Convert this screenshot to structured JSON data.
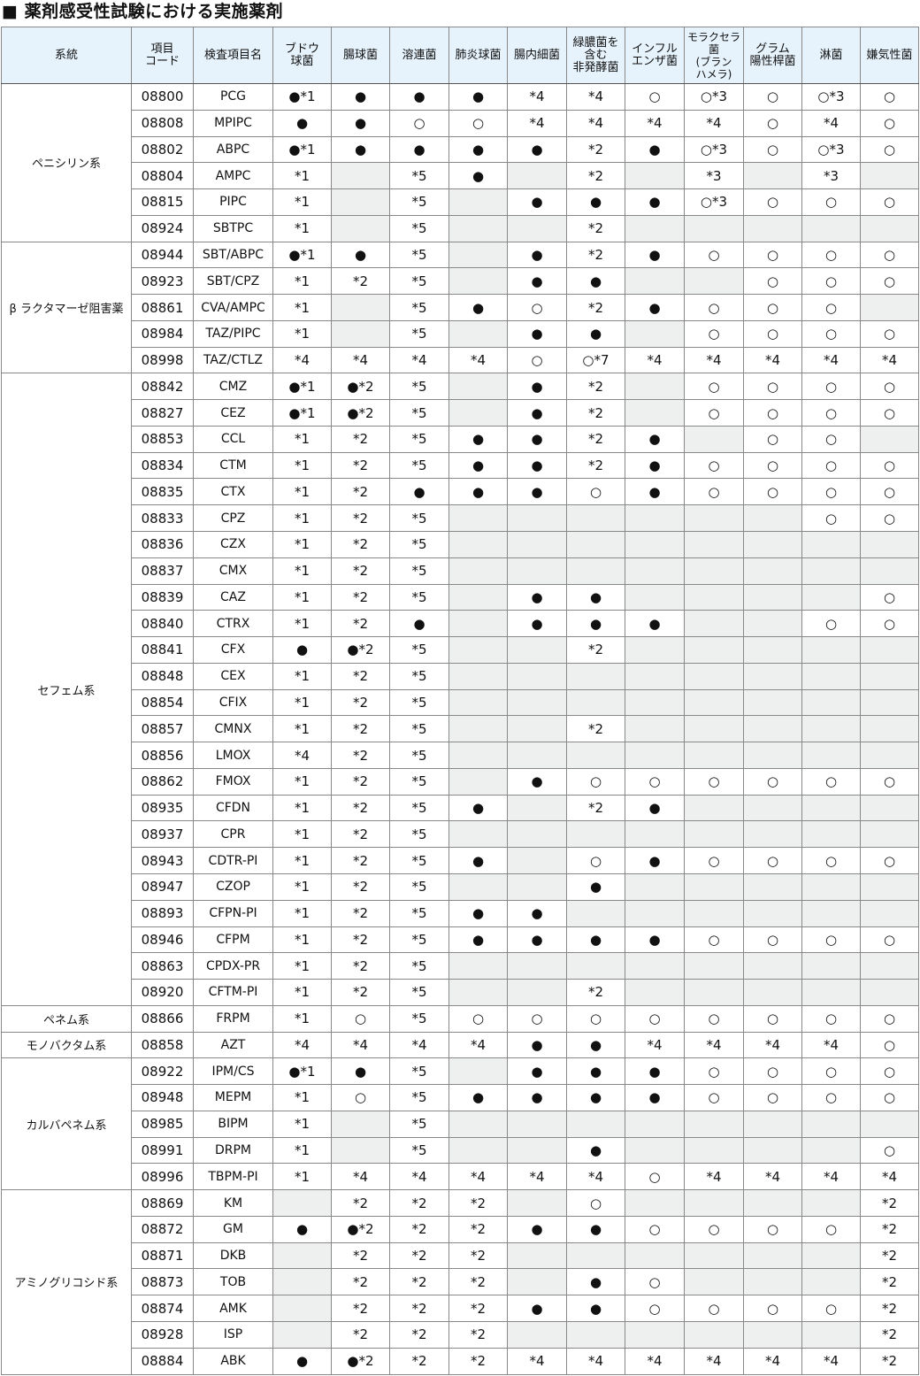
{
  "title": "■ 薬剤感受性試験における実施薬剤",
  "headers": [
    "系統",
    "項目\nコード",
    "検査項目名",
    "ブドウ\n球菌",
    "腸球菌",
    "溶連菌",
    "肺炎球菌",
    "腸内細菌",
    "緑膿菌を\n含む\n非発酵菌",
    "インフル\nエンザ菌",
    "モラクセラ菌\n(ブラン\nハメラ)",
    "グラム\n陽性桿菌",
    "淋菌",
    "嫌気性菌"
  ],
  "groups": [
    {
      "name": "ペニシリン系",
      "rows": [
        [
          "08800",
          "PCG",
          "●*1",
          "●",
          "●",
          "●",
          "*4",
          "*4",
          "○",
          "○*3",
          "○",
          "○*3",
          "○"
        ],
        [
          "08808",
          "MPIPC",
          "●",
          "●",
          "○",
          "○",
          "*4",
          "*4",
          "*4",
          "*4",
          "○",
          "*4",
          "○"
        ],
        [
          "08802",
          "ABPC",
          "●*1",
          "●",
          "●",
          "●",
          "●",
          "*2",
          "●",
          "○*3",
          "○",
          "○*3",
          "○"
        ],
        [
          "08804",
          "AMPC",
          "*1",
          "",
          "*5",
          "●",
          "",
          "*2",
          "",
          "*3",
          "",
          "*3",
          ""
        ],
        [
          "08815",
          "PIPC",
          "*1",
          "",
          "*5",
          "",
          "●",
          "●",
          "●",
          "○*3",
          "○",
          "○",
          "○"
        ],
        [
          "08924",
          "SBTPC",
          "*1",
          "",
          "*5",
          "",
          "",
          "*2",
          "",
          "",
          "",
          "",
          ""
        ]
      ]
    },
    {
      "name": "β ラクタマーゼ阻害薬",
      "rows": [
        [
          "08944",
          "SBT/ABPC",
          "●*1",
          "●",
          "*5",
          "",
          "●",
          "*2",
          "●",
          "○",
          "○",
          "○",
          "○"
        ],
        [
          "08923",
          "SBT/CPZ",
          "*1",
          "*2",
          "*5",
          "",
          "●",
          "●",
          "",
          "",
          "○",
          "○",
          "○"
        ],
        [
          "08861",
          "CVA/AMPC",
          "*1",
          "",
          "*5",
          "●",
          "○",
          "*2",
          "●",
          "○",
          "○",
          "○",
          ""
        ],
        [
          "08984",
          "TAZ/PIPC",
          "*1",
          "",
          "*5",
          "",
          "●",
          "●",
          "",
          "○",
          "○",
          "○",
          "○"
        ],
        [
          "08998",
          "TAZ/CTLZ",
          "*4",
          "*4",
          "*4",
          "*4",
          "○",
          "○*7",
          "*4",
          "*4",
          "*4",
          "*4",
          "*4"
        ]
      ]
    },
    {
      "name": "セフェム系",
      "rows": [
        [
          "08842",
          "CMZ",
          "●*1",
          "●*2",
          "*5",
          "",
          "●",
          "*2",
          "",
          "○",
          "○",
          "○",
          "○"
        ],
        [
          "08827",
          "CEZ",
          "●*1",
          "●*2",
          "*5",
          "",
          "●",
          "*2",
          "",
          "○",
          "○",
          "○",
          "○"
        ],
        [
          "08853",
          "CCL",
          "*1",
          "*2",
          "*5",
          "●",
          "●",
          "*2",
          "●",
          "",
          "○",
          "○",
          ""
        ],
        [
          "08834",
          "CTM",
          "*1",
          "*2",
          "*5",
          "●",
          "●",
          "*2",
          "●",
          "○",
          "○",
          "○",
          "○"
        ],
        [
          "08835",
          "CTX",
          "*1",
          "*2",
          "●",
          "●",
          "●",
          "○",
          "●",
          "○",
          "○",
          "○",
          "○"
        ],
        [
          "08833",
          "CPZ",
          "*1",
          "*2",
          "*5",
          "",
          "",
          "",
          "",
          "",
          "",
          "○",
          "○"
        ],
        [
          "08836",
          "CZX",
          "*1",
          "*2",
          "*5",
          "",
          "",
          "",
          "",
          "",
          "",
          "",
          ""
        ],
        [
          "08837",
          "CMX",
          "*1",
          "*2",
          "*5",
          "",
          "",
          "",
          "",
          "",
          "",
          "",
          ""
        ],
        [
          "08839",
          "CAZ",
          "*1",
          "*2",
          "*5",
          "",
          "●",
          "●",
          "",
          "",
          "",
          "",
          "○"
        ],
        [
          "08840",
          "CTRX",
          "*1",
          "*2",
          "●",
          "",
          "●",
          "●",
          "●",
          "",
          "",
          "○",
          "○"
        ],
        [
          "08841",
          "CFX",
          "●",
          "●*2",
          "*5",
          "",
          "",
          "*2",
          "",
          "",
          "",
          "",
          ""
        ],
        [
          "08848",
          "CEX",
          "*1",
          "*2",
          "*5",
          "",
          "",
          "",
          "",
          "",
          "",
          "",
          ""
        ],
        [
          "08854",
          "CFIX",
          "*1",
          "*2",
          "*5",
          "",
          "",
          "",
          "",
          "",
          "",
          "",
          ""
        ],
        [
          "08857",
          "CMNX",
          "*1",
          "*2",
          "*5",
          "",
          "",
          "*2",
          "",
          "",
          "",
          "",
          ""
        ],
        [
          "08856",
          "LMOX",
          "*4",
          "*2",
          "*5",
          "",
          "",
          "",
          "",
          "",
          "",
          "",
          ""
        ],
        [
          "08862",
          "FMOX",
          "*1",
          "*2",
          "*5",
          "",
          "●",
          "○",
          "○",
          "○",
          "○",
          "○",
          "○"
        ],
        [
          "08935",
          "CFDN",
          "*1",
          "*2",
          "*5",
          "●",
          "",
          "*2",
          "●",
          "",
          "",
          "",
          ""
        ],
        [
          "08937",
          "CPR",
          "*1",
          "*2",
          "*5",
          "",
          "",
          "",
          "",
          "",
          "",
          "",
          ""
        ],
        [
          "08943",
          "CDTR-PI",
          "*1",
          "*2",
          "*5",
          "●",
          "",
          "○",
          "●",
          "○",
          "○",
          "○",
          "○"
        ],
        [
          "08947",
          "CZOP",
          "*1",
          "*2",
          "*5",
          "",
          "",
          "●",
          "",
          "",
          "",
          "",
          ""
        ],
        [
          "08893",
          "CFPN-PI",
          "*1",
          "*2",
          "*5",
          "●",
          "●",
          "",
          "",
          "",
          "",
          "",
          ""
        ],
        [
          "08946",
          "CFPM",
          "*1",
          "*2",
          "*5",
          "●",
          "●",
          "●",
          "●",
          "○",
          "○",
          "○",
          "○"
        ],
        [
          "08863",
          "CPDX-PR",
          "*1",
          "*2",
          "*5",
          "",
          "",
          "",
          "",
          "",
          "",
          "",
          ""
        ],
        [
          "08920",
          "CFTM-PI",
          "*1",
          "*2",
          "*5",
          "",
          "",
          "*2",
          "",
          "",
          "",
          "",
          ""
        ]
      ]
    },
    {
      "name": "ペネム系",
      "rows": [
        [
          "08866",
          "FRPM",
          "*1",
          "○",
          "*5",
          "○",
          "○",
          "○",
          "○",
          "○",
          "○",
          "○",
          "○"
        ]
      ]
    },
    {
      "name": "モノバクタム系",
      "rows": [
        [
          "08858",
          "AZT",
          "*4",
          "*4",
          "*4",
          "*4",
          "●",
          "●",
          "*4",
          "*4",
          "*4",
          "*4",
          "○"
        ]
      ]
    },
    {
      "name": "カルバペネム系",
      "rows": [
        [
          "08922",
          "IPM/CS",
          "●*1",
          "●",
          "*5",
          "",
          "●",
          "●",
          "●",
          "○",
          "○",
          "○",
          "○"
        ],
        [
          "08948",
          "MEPM",
          "*1",
          "○",
          "*5",
          "●",
          "●",
          "●",
          "●",
          "○",
          "○",
          "○",
          "○"
        ],
        [
          "08985",
          "BIPM",
          "*1",
          "",
          "*5",
          "",
          "",
          "",
          "",
          "",
          "",
          "",
          ""
        ],
        [
          "08991",
          "DRPM",
          "*1",
          "",
          "*5",
          "",
          "",
          "●",
          "",
          "",
          "",
          "",
          "○"
        ],
        [
          "08996",
          "TBPM-PI",
          "*1",
          "*4",
          "*4",
          "*4",
          "*4",
          "*4",
          "○",
          "*4",
          "*4",
          "*4",
          "*4"
        ]
      ]
    },
    {
      "name": "アミノグリコシド系",
      "rows": [
        [
          "08869",
          "KM",
          "",
          "*2",
          "*2",
          "*2",
          "",
          "○",
          "",
          "",
          "",
          "",
          "*2"
        ],
        [
          "08872",
          "GM",
          "●",
          "●*2",
          "*2",
          "*2",
          "●",
          "●",
          "○",
          "○",
          "○",
          "○",
          "*2"
        ],
        [
          "08871",
          "DKB",
          "",
          "*2",
          "*2",
          "*2",
          "",
          "",
          "",
          "",
          "",
          "",
          "*2"
        ],
        [
          "08873",
          "TOB",
          "",
          "*2",
          "*2",
          "*2",
          "",
          "●",
          "○",
          "",
          "",
          "",
          "*2"
        ],
        [
          "08874",
          "AMK",
          "",
          "*2",
          "*2",
          "*2",
          "●",
          "●",
          "○",
          "○",
          "○",
          "○",
          "*2"
        ],
        [
          "08928",
          "ISP",
          "",
          "*2",
          "*2",
          "*2",
          "",
          "",
          "",
          "",
          "",
          "",
          "*2"
        ],
        [
          "08884",
          "ABK",
          "●",
          "●*2",
          "*2",
          "*2",
          "*4",
          "*4",
          "*4",
          "*4",
          "*4",
          "*4",
          "*2"
        ]
      ]
    }
  ],
  "colors": {
    "header_bg": "#e6f3fc",
    "empty_cell": "#eeefef"
  }
}
